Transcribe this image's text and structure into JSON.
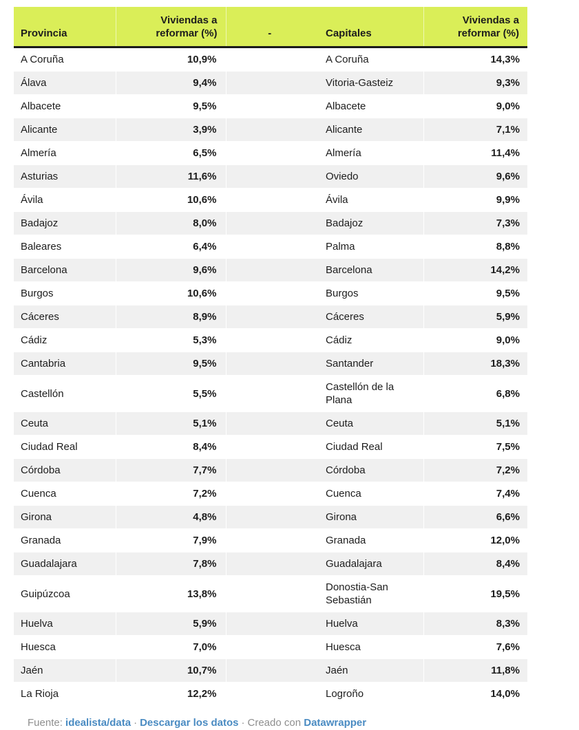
{
  "colors": {
    "header_bg": "#daee58",
    "stripe": "#f0f0f0",
    "text": "#1d1d1d",
    "muted": "#8e8e8e",
    "link": "#4a8bc2",
    "border_dark": "#1a1a1a",
    "page_bg": "#ffffff"
  },
  "chart_data": {
    "type": "table",
    "columns": [
      "Provincia",
      "Viviendas a reformar (%)",
      "-",
      "Capitales",
      "Viviendas a reformar (%)"
    ],
    "value_format": "percent, comma decimal separator",
    "rows": [
      {
        "provincia": "A Coruña",
        "viviendas_pct": "10,9%",
        "capital": "A Coruña",
        "capital_pct": "14,3%"
      },
      {
        "provincia": "Álava",
        "viviendas_pct": "9,4%",
        "capital": "Vitoria-Gasteiz",
        "capital_pct": "9,3%"
      },
      {
        "provincia": "Albacete",
        "viviendas_pct": "9,5%",
        "capital": "Albacete",
        "capital_pct": "9,0%"
      },
      {
        "provincia": "Alicante",
        "viviendas_pct": "3,9%",
        "capital": "Alicante",
        "capital_pct": "7,1%"
      },
      {
        "provincia": "Almería",
        "viviendas_pct": "6,5%",
        "capital": "Almería",
        "capital_pct": "11,4%"
      },
      {
        "provincia": "Asturias",
        "viviendas_pct": "11,6%",
        "capital": "Oviedo",
        "capital_pct": "9,6%"
      },
      {
        "provincia": "Ávila",
        "viviendas_pct": "10,6%",
        "capital": "Ávila",
        "capital_pct": "9,9%"
      },
      {
        "provincia": "Badajoz",
        "viviendas_pct": "8,0%",
        "capital": "Badajoz",
        "capital_pct": "7,3%"
      },
      {
        "provincia": "Baleares",
        "viviendas_pct": "6,4%",
        "capital": "Palma",
        "capital_pct": "8,8%"
      },
      {
        "provincia": "Barcelona",
        "viviendas_pct": "9,6%",
        "capital": "Barcelona",
        "capital_pct": "14,2%"
      },
      {
        "provincia": "Burgos",
        "viviendas_pct": "10,6%",
        "capital": "Burgos",
        "capital_pct": "9,5%"
      },
      {
        "provincia": "Cáceres",
        "viviendas_pct": "8,9%",
        "capital": "Cáceres",
        "capital_pct": "5,9%"
      },
      {
        "provincia": "Cádiz",
        "viviendas_pct": "5,3%",
        "capital": "Cádiz",
        "capital_pct": "9,0%"
      },
      {
        "provincia": "Cantabria",
        "viviendas_pct": "9,5%",
        "capital": "Santander",
        "capital_pct": "18,3%"
      },
      {
        "provincia": "Castellón",
        "viviendas_pct": "5,5%",
        "capital": "Castellón de la Plana",
        "capital_pct": "6,8%"
      },
      {
        "provincia": "Ceuta",
        "viviendas_pct": "5,1%",
        "capital": "Ceuta",
        "capital_pct": "5,1%"
      },
      {
        "provincia": "Ciudad Real",
        "viviendas_pct": "8,4%",
        "capital": "Ciudad Real",
        "capital_pct": "7,5%"
      },
      {
        "provincia": "Córdoba",
        "viviendas_pct": "7,7%",
        "capital": "Córdoba",
        "capital_pct": "7,2%"
      },
      {
        "provincia": "Cuenca",
        "viviendas_pct": "7,2%",
        "capital": "Cuenca",
        "capital_pct": "7,4%"
      },
      {
        "provincia": "Girona",
        "viviendas_pct": "4,8%",
        "capital": "Girona",
        "capital_pct": "6,6%"
      },
      {
        "provincia": "Granada",
        "viviendas_pct": "7,9%",
        "capital": "Granada",
        "capital_pct": "12,0%"
      },
      {
        "provincia": "Guadalajara",
        "viviendas_pct": "7,8%",
        "capital": "Guadalajara",
        "capital_pct": "8,4%"
      },
      {
        "provincia": "Guipúzcoa",
        "viviendas_pct": "13,8%",
        "capital": "Donostia-San Sebastián",
        "capital_pct": "19,5%"
      },
      {
        "provincia": "Huelva",
        "viviendas_pct": "5,9%",
        "capital": "Huelva",
        "capital_pct": "8,3%"
      },
      {
        "provincia": "Huesca",
        "viviendas_pct": "7,0%",
        "capital": "Huesca",
        "capital_pct": "7,6%"
      },
      {
        "provincia": "Jaén",
        "viviendas_pct": "10,7%",
        "capital": "Jaén",
        "capital_pct": "11,8%"
      },
      {
        "provincia": "La Rioja",
        "viviendas_pct": "12,2%",
        "capital": "Logroño",
        "capital_pct": "14,0%"
      }
    ]
  },
  "footer": {
    "source_label": "Fuente:",
    "source_link": "idealista/data",
    "download_link": "Descargar los datos",
    "created_label": "Creado con",
    "datawrapper_link": "Datawrapper",
    "separator": "·"
  }
}
